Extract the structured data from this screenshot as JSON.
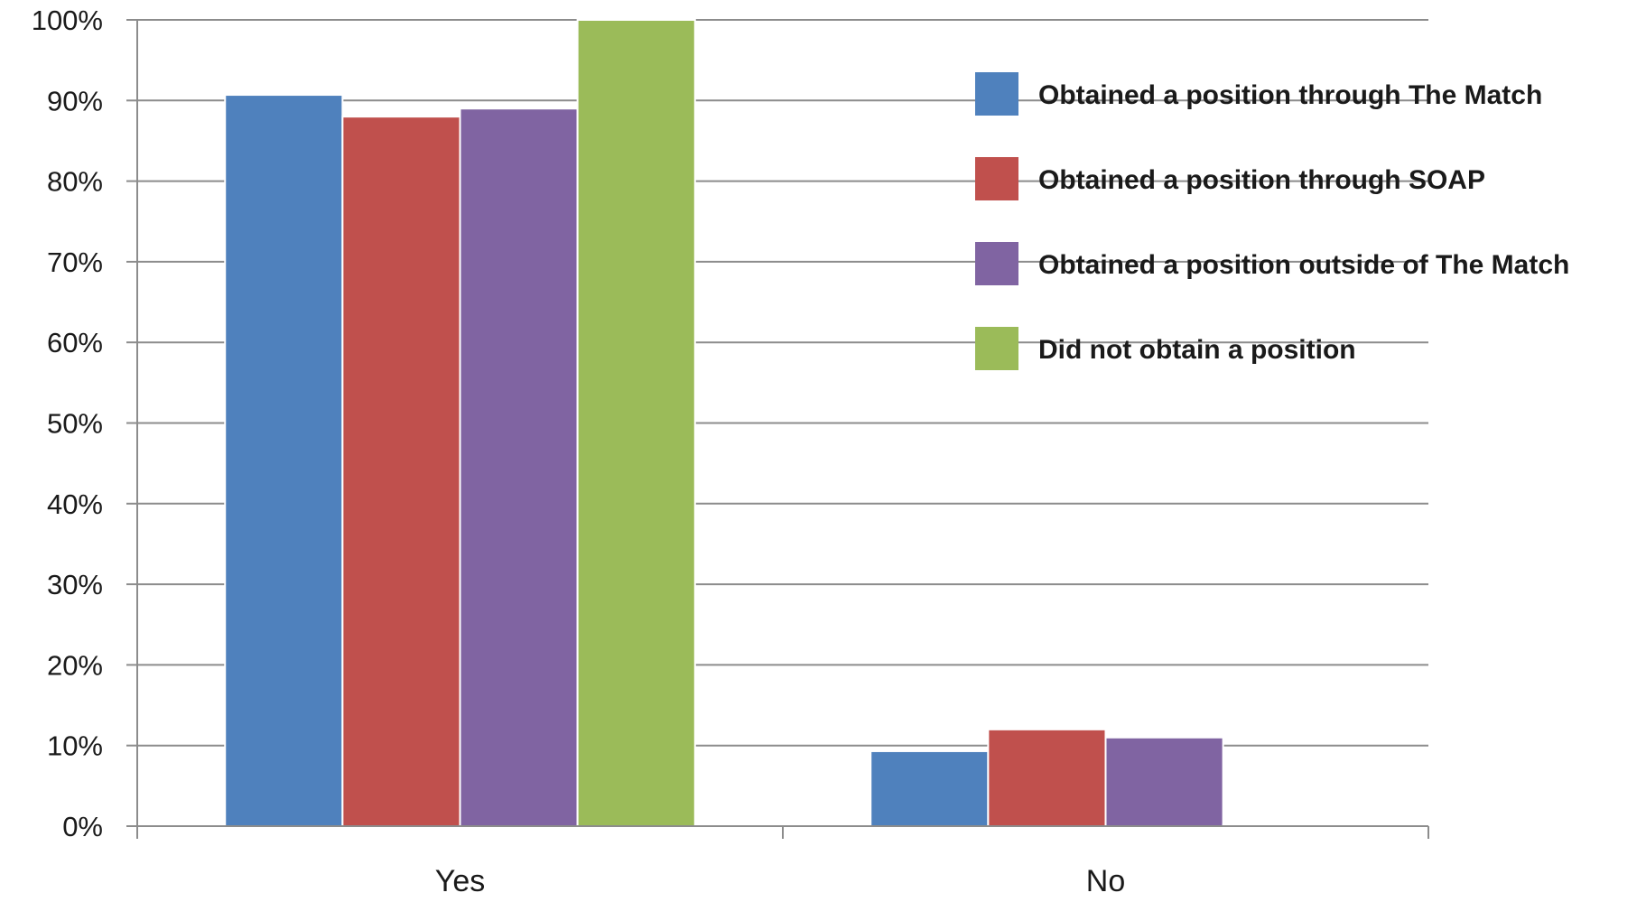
{
  "chart_data": {
    "type": "bar",
    "title": "",
    "xlabel": "",
    "ylabel": "",
    "categories": [
      "Yes",
      "No"
    ],
    "ylim": [
      0,
      100
    ],
    "yticks": [
      0,
      10,
      20,
      30,
      40,
      50,
      60,
      70,
      80,
      90,
      100
    ],
    "ytick_labels": [
      "0%",
      "10%",
      "20%",
      "30%",
      "40%",
      "50%",
      "60%",
      "70%",
      "80%",
      "90%",
      "100%"
    ],
    "value_unit": "%",
    "grid": true,
    "legend_position": "right",
    "series": [
      {
        "name": "Obtained a position through The Match",
        "color": "#4f81bd",
        "values": [
          90.7,
          9.3
        ]
      },
      {
        "name": "Obtained a position through SOAP",
        "color": "#c0504d",
        "values": [
          88.0,
          12.0
        ]
      },
      {
        "name": "Obtained a position outside of The Match",
        "color": "#8064a2",
        "values": [
          89.0,
          11.0
        ]
      },
      {
        "name": "Did not obtain a position",
        "color": "#9bbb59",
        "values": [
          100.0,
          0.0
        ]
      }
    ]
  }
}
